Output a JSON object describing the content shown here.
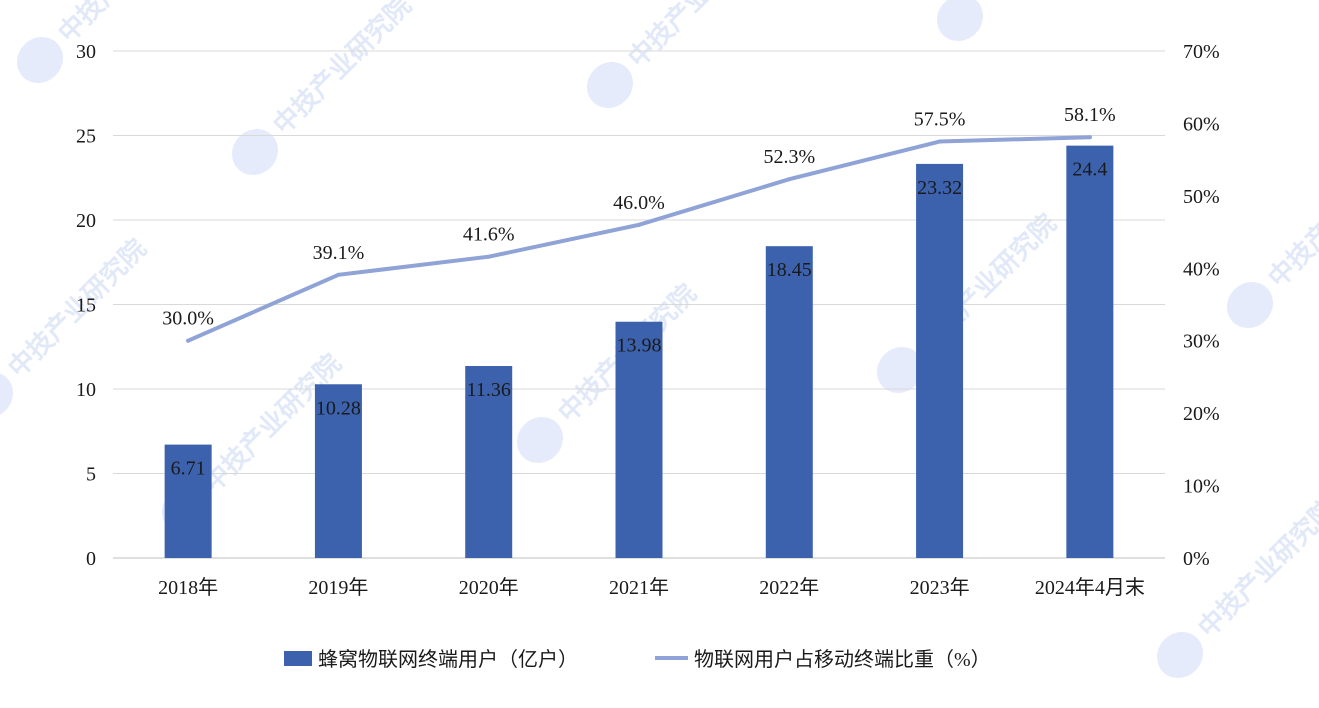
{
  "colors": {
    "bar": "#3c62ae",
    "line": "#8fa3d6",
    "grid": "#d9d9d9"
  },
  "watermark": "中技产业研究院",
  "chart_data": {
    "type": "bar",
    "categories": [
      "2018年",
      "2019年",
      "2020年",
      "2021年",
      "2022年",
      "2023年",
      "2024年4月末"
    ],
    "series": [
      {
        "name": "蜂窝物联网终端用户（亿户）",
        "type": "bar",
        "axis": "left",
        "values": [
          6.71,
          10.28,
          11.36,
          13.98,
          18.45,
          23.32,
          24.4
        ],
        "labels": [
          "6.71",
          "10.28",
          "11.36",
          "13.98",
          "18.45",
          "23.32",
          "24.4"
        ]
      },
      {
        "name": "物联网用户占移动终端比重（%）",
        "type": "line",
        "axis": "right",
        "values": [
          30.0,
          39.1,
          41.6,
          46.0,
          52.3,
          57.5,
          58.1
        ],
        "labels": [
          "30.0%",
          "39.1%",
          "41.6%",
          "46.0%",
          "52.3%",
          "57.5%",
          "58.1%"
        ]
      }
    ],
    "y_left": {
      "lim": [
        0,
        30
      ],
      "ticks": [
        "0",
        "5",
        "10",
        "15",
        "20",
        "25",
        "30"
      ]
    },
    "y_right": {
      "lim": [
        0,
        70
      ],
      "ticks": [
        "0%",
        "10%",
        "20%",
        "30%",
        "40%",
        "50%",
        "60%",
        "70%"
      ]
    },
    "grid": true,
    "legend_position": "bottom"
  }
}
